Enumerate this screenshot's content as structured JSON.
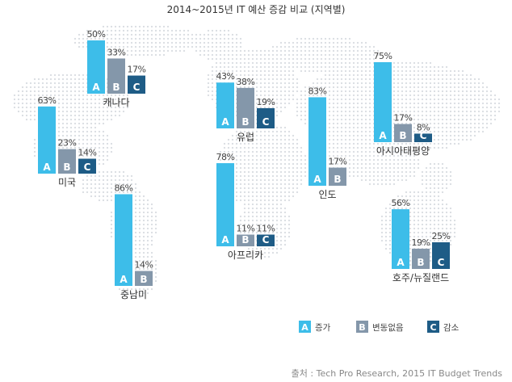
{
  "title": "2014~2015년 IT 예산 증감 비교 (지역별)",
  "source": "출처 : Tech Pro Research, 2015 IT Budget Trends",
  "chart_data": {
    "type": "bar",
    "title": "2014~2015년 IT 예산 증감 비교 (지역별)",
    "unit": "%",
    "legend_position": "bottom-right",
    "legend": [
      {
        "key": "A",
        "label": "증가",
        "color": "#3dbde9"
      },
      {
        "key": "B",
        "label": "변동없음",
        "color": "#8497aa"
      },
      {
        "key": "C",
        "label": "감소",
        "color": "#1e5c86"
      }
    ],
    "regions": [
      {
        "name": "캐나다",
        "values": {
          "A": 50,
          "B": 33,
          "C": 17
        }
      },
      {
        "name": "미국",
        "values": {
          "A": 63,
          "B": 23,
          "C": 14
        }
      },
      {
        "name": "중남미",
        "values": {
          "A": 86,
          "B": 14
        }
      },
      {
        "name": "유럽",
        "values": {
          "A": 43,
          "B": 38,
          "C": 19
        }
      },
      {
        "name": "아프리카",
        "values": {
          "A": 78,
          "B": 11,
          "C": 11
        }
      },
      {
        "name": "인도",
        "values": {
          "A": 83,
          "B": 17
        }
      },
      {
        "name": "아시아태평양",
        "values": {
          "A": 75,
          "B": 17,
          "C": 8
        }
      },
      {
        "name": "호주/뉴질랜드",
        "values": {
          "A": 56,
          "B": 19,
          "C": 25
        }
      }
    ]
  }
}
